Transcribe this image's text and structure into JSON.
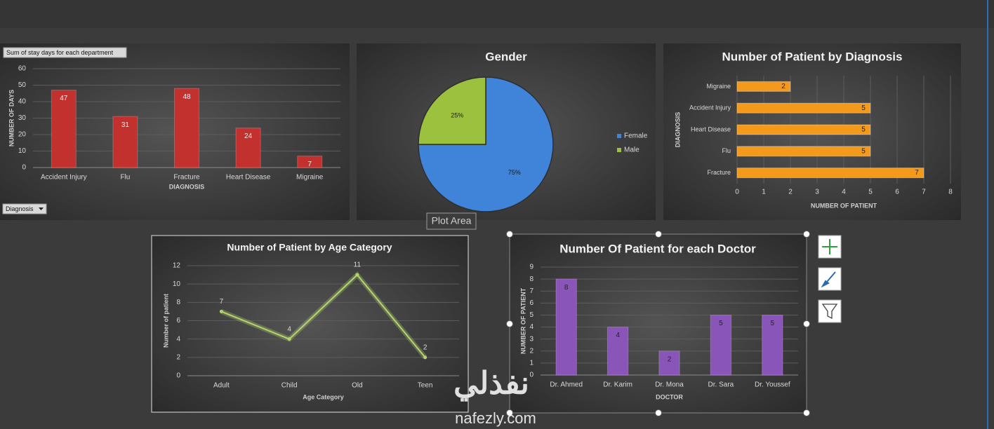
{
  "chart_data": [
    {
      "type": "bar",
      "pivot_label": "Sum of stay days for each department",
      "filter_button": "Diagnosis",
      "categories": [
        "Accident Injury",
        "Flu",
        "Fracture",
        "Heart Disease",
        "Migraine"
      ],
      "values": [
        47,
        31,
        48,
        24,
        7
      ],
      "color": "#c3312f",
      "label_color": "#f2f2f2",
      "ylim": [
        0,
        60
      ],
      "yticks": [
        0,
        10,
        20,
        30,
        40,
        50,
        60
      ],
      "ylabel": "NUMBER OF DAYS",
      "xlabel": "DIAGNOSIS",
      "grid": true
    },
    {
      "type": "pie",
      "title": "Gender",
      "categories": [
        "Female",
        "Male"
      ],
      "values": [
        75,
        25
      ],
      "value_labels": [
        "75%",
        "25%"
      ],
      "colors": [
        "#3f84d9",
        "#9cc13e"
      ],
      "legend": "right"
    },
    {
      "type": "hbar",
      "title": "Number of Patient by Diagnosis",
      "categories": [
        "Migraine",
        "Accident Injury",
        "Heart Disease",
        "Flu",
        "Fracture"
      ],
      "values": [
        2,
        5,
        5,
        5,
        7
      ],
      "color": "#f39a1c",
      "label_color": "#222222",
      "xlim": [
        0,
        8
      ],
      "xticks": [
        0,
        1,
        2,
        3,
        4,
        5,
        6,
        7,
        8
      ],
      "xlabel": "NUMBER OF PATIENT",
      "ylabel": "DIAGNOSIS",
      "grid": true
    },
    {
      "type": "line",
      "title": "Number of Patient by Age Category",
      "categories": [
        "Adult",
        "Child",
        "Old",
        "Teen"
      ],
      "values": [
        7,
        4,
        11,
        2
      ],
      "color": "#b6d46c",
      "ylim": [
        0,
        12
      ],
      "yticks": [
        0,
        2,
        4,
        6,
        8,
        10,
        12
      ],
      "ylabel": "Number of patient",
      "xlabel": "Age Category",
      "grid": true
    },
    {
      "type": "bar",
      "title": "Number Of Patient for each Doctor",
      "categories": [
        "Dr. Ahmed",
        "Dr. Karim",
        "Dr. Mona",
        "Dr. Sara",
        "Dr. Youssef"
      ],
      "values": [
        8,
        4,
        2,
        5,
        5
      ],
      "color": "#8a55b8",
      "label_color": "#222222",
      "ylim": [
        0,
        9
      ],
      "yticks": [
        0,
        1,
        2,
        3,
        4,
        5,
        6,
        7,
        8,
        9
      ],
      "ylabel": "NUMBER OF PATIENT",
      "xlabel": "DOCTOR",
      "grid": true
    }
  ],
  "tooltip": "Plot Area",
  "watermark": {
    "arabic": "نفذلي",
    "latin": "nafezly.com"
  }
}
